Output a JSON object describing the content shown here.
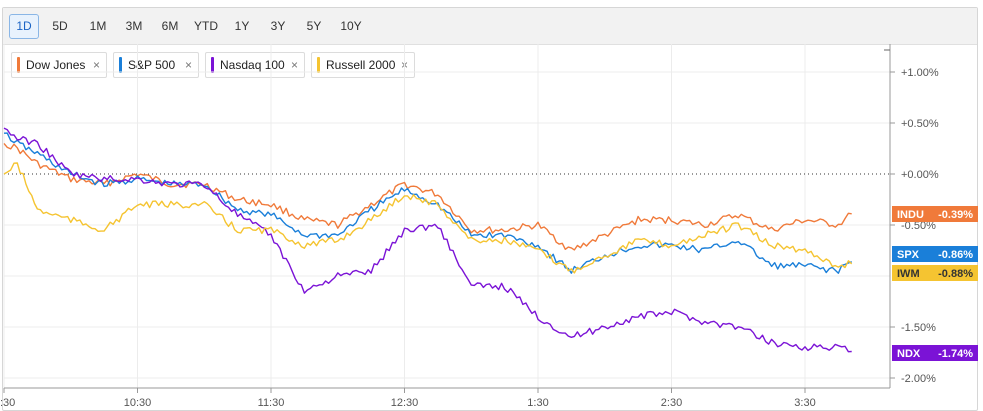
{
  "ranges": [
    {
      "label": "1D",
      "active": true
    },
    {
      "label": "5D"
    },
    {
      "label": "1M"
    },
    {
      "label": "3M"
    },
    {
      "label": "6M"
    },
    {
      "label": "YTD"
    },
    {
      "label": "1Y"
    },
    {
      "label": "3Y"
    },
    {
      "label": "5Y"
    },
    {
      "label": "10Y"
    }
  ],
  "legend": [
    {
      "label": "Dow Jones",
      "color": "#f07a3a",
      "close": "×"
    },
    {
      "label": "S&P 500",
      "color": "#1a7fd9",
      "close": "×"
    },
    {
      "label": "Nasdaq 100",
      "color": "#7b13d6",
      "close": "×"
    },
    {
      "label": "Russell 2000",
      "color": "#f5c431",
      "close": "×"
    }
  ],
  "chart_data": {
    "type": "line",
    "x_ticks": [
      ":30",
      "10:30",
      "11:30",
      "12:30",
      "1:30",
      "2:30",
      "3:30"
    ],
    "y_ticks": [
      "+1.00%",
      "+0.50%",
      "+0.00%",
      "-0.50%",
      "-1.50%",
      "-2.00%"
    ],
    "y_tick_values": [
      1.0,
      0.5,
      0.0,
      -0.5,
      -1.5,
      -2.0
    ],
    "ylim": [
      -2.05,
      1.05
    ],
    "xlim": [
      9.5,
      16.0
    ],
    "zero_line": "dotted",
    "grid": true,
    "series": [
      {
        "name": "Dow Jones",
        "tag": "INDU",
        "tag_value": "-0.39%",
        "color": "#f07a3a",
        "x": [
          9.5,
          9.6,
          9.75,
          10.0,
          10.25,
          10.5,
          10.75,
          11.0,
          11.25,
          11.5,
          11.75,
          12.0,
          12.25,
          12.5,
          12.75,
          13.0,
          13.25,
          13.5,
          13.75,
          14.0,
          14.25,
          14.5,
          14.75,
          15.0,
          15.25,
          15.5,
          15.75,
          15.85
        ],
        "y": [
          0.3,
          0.25,
          0.1,
          -0.05,
          -0.1,
          0.0,
          -0.1,
          -0.1,
          -0.25,
          -0.3,
          -0.45,
          -0.5,
          -0.3,
          -0.1,
          -0.2,
          -0.55,
          -0.55,
          -0.5,
          -0.75,
          -0.6,
          -0.45,
          -0.45,
          -0.5,
          -0.4,
          -0.55,
          -0.45,
          -0.5,
          -0.39
        ]
      },
      {
        "name": "S&P 500",
        "tag": "SPX",
        "tag_value": "-0.86%",
        "color": "#1a7fd9",
        "x": [
          9.5,
          9.6,
          9.75,
          10.0,
          10.25,
          10.5,
          10.75,
          11.0,
          11.25,
          11.5,
          11.75,
          12.0,
          12.25,
          12.5,
          12.75,
          13.0,
          13.25,
          13.5,
          13.75,
          14.0,
          14.25,
          14.5,
          14.75,
          15.0,
          15.25,
          15.5,
          15.75,
          15.85
        ],
        "y": [
          0.4,
          0.3,
          0.2,
          0.0,
          -0.1,
          -0.05,
          -0.1,
          -0.1,
          -0.35,
          -0.4,
          -0.6,
          -0.6,
          -0.35,
          -0.15,
          -0.3,
          -0.6,
          -0.6,
          -0.7,
          -0.95,
          -0.8,
          -0.7,
          -0.7,
          -0.75,
          -0.65,
          -0.9,
          -0.9,
          -0.95,
          -0.86
        ]
      },
      {
        "name": "Nasdaq 100",
        "tag": "NDX",
        "tag_value": "-1.74%",
        "color": "#7b13d6",
        "x": [
          9.5,
          9.6,
          9.75,
          10.0,
          10.25,
          10.5,
          10.75,
          11.0,
          11.25,
          11.5,
          11.75,
          12.0,
          12.25,
          12.5,
          12.75,
          13.0,
          13.25,
          13.5,
          13.75,
          14.0,
          14.25,
          14.5,
          14.75,
          15.0,
          15.25,
          15.5,
          15.75,
          15.85
        ],
        "y": [
          0.45,
          0.35,
          0.3,
          0.0,
          -0.05,
          -0.05,
          -0.1,
          -0.1,
          -0.4,
          -0.6,
          -1.15,
          -1.0,
          -0.95,
          -0.55,
          -0.5,
          -1.1,
          -1.1,
          -1.4,
          -1.6,
          -1.5,
          -1.4,
          -1.35,
          -1.45,
          -1.5,
          -1.65,
          -1.7,
          -1.7,
          -1.74
        ]
      },
      {
        "name": "Russell 2000",
        "tag": "IWM",
        "tag_value": "-0.88%",
        "color": "#f5c431",
        "x": [
          9.5,
          9.6,
          9.75,
          10.0,
          10.25,
          10.5,
          10.75,
          11.0,
          11.25,
          11.5,
          11.75,
          12.0,
          12.25,
          12.5,
          12.75,
          13.0,
          13.25,
          13.5,
          13.75,
          14.0,
          14.25,
          14.5,
          14.75,
          15.0,
          15.25,
          15.5,
          15.75,
          15.85
        ],
        "y": [
          0.0,
          0.1,
          -0.35,
          -0.45,
          -0.55,
          -0.3,
          -0.3,
          -0.3,
          -0.55,
          -0.55,
          -0.7,
          -0.65,
          -0.45,
          -0.2,
          -0.3,
          -0.65,
          -0.65,
          -0.75,
          -0.95,
          -0.8,
          -0.65,
          -0.7,
          -0.6,
          -0.5,
          -0.7,
          -0.75,
          -0.9,
          -0.88
        ]
      }
    ]
  }
}
